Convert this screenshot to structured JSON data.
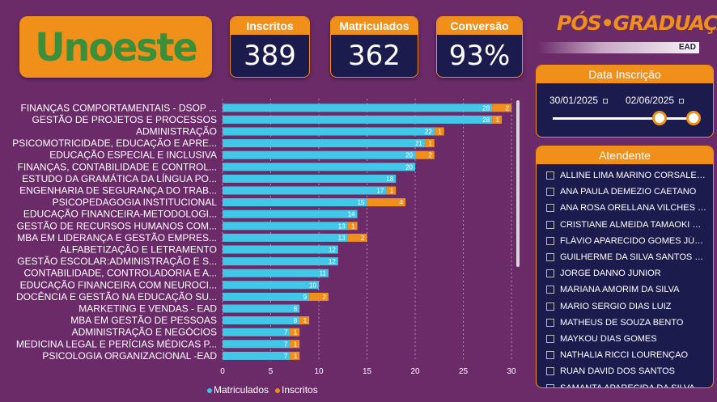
{
  "logo": {
    "text": "Unoeste"
  },
  "kpis": [
    {
      "label": "Inscritos",
      "value": "389"
    },
    {
      "label": "Matriculados",
      "value": "362"
    },
    {
      "label": "Conversão",
      "value": "93%"
    }
  ],
  "brand": {
    "title": "PÓS•GRADUAÇÃO",
    "subtitle": "EAD"
  },
  "date_filter": {
    "title": "Data Inscrição",
    "start": "30/01/2025",
    "end": "02/06/2025",
    "range_start_fraction": 0.76,
    "range_end_fraction": 1.0
  },
  "attendants": {
    "title": "Atendente",
    "items": [
      "ALLINE LIMA MARINO CORSALETTI",
      "ANA PAULA DEMEZIO CAETANO",
      "ANA ROSA ORELLANA VILCHES SO...",
      "CRISTIANE ALMEIDA TAMAOKI ROD...",
      "FLÁVIO APARECIDO GOMES JÚNIOR",
      "GUILHERME DA SILVA SANTOS JOZI...",
      "JORGE DANNO JUNIOR",
      "MARIANA AMORIM DA SILVA",
      "MARIO SERGIO DIAS LUIZ",
      "MATHEUS DE SOUZA BENTO",
      "MAYKOU DIAS GOMES",
      "NATHALIA RICCI LOURENÇAO",
      "RUAN DAVID DOS SANTOS",
      "SAMANTA APARECIDA DA SILVA"
    ]
  },
  "colors": {
    "matriculados": "#41c8e8",
    "inscritos": "#f0901a"
  },
  "chart_data": {
    "type": "bar",
    "orientation": "horizontal",
    "stacked": true,
    "categories": [
      "FINANÇAS COMPORTAMENTAIS - DSOP ...",
      "GESTÃO DE PROJETOS E PROCESSOS",
      "ADMINISTRAÇÃO",
      "PSICOMOTRICIDADE, EDUCAÇÃO E APRE...",
      "EDUCAÇÃO ESPECIAL E INCLUSIVA",
      "FINANÇAS, CONTABILIDADE E CONTROL...",
      "ESTUDO DA GRAMÁTICA DA LÍNGUA PO...",
      "ENGENHARIA DE SEGURANÇA DO TRAB...",
      "PSICOPEDAGOGIA INSTITUCIONAL",
      "EDUCAÇÃO FINANCEIRA-METODOLOGI...",
      "GESTÃO DE RECURSOS HUMANOS COM...",
      "MBA EM LIDERANÇA E GESTÃO EMPRES...",
      "ALFABETIZAÇÃO E LETRAMENTO",
      "GESTÃO ESCOLAR:ADMINISTRAÇÃO E S...",
      "CONTABILIDADE, CONTROLADORIA E A...",
      "EDUCAÇÃO FINANCEIRA COM NEUROCI...",
      "DOCÊNCIA E GESTÃO NA EDUCAÇÃO SU...",
      "MARKETING E VENDAS - EAD",
      "MBA EM GESTÃO DE PESSOAS",
      "ADMINISTRAÇÃO E NEGÓCIOS",
      "MEDICINA LEGAL E PERÍCIAS MÉDICAS P...",
      "PSICOLOGIA ORGANIZACIONAL -EAD"
    ],
    "series": [
      {
        "name": "Matriculados",
        "values": [
          28,
          28,
          22,
          21,
          20,
          20,
          18,
          17,
          15,
          14,
          13,
          13,
          12,
          12,
          11,
          10,
          9,
          8,
          8,
          7,
          7,
          7
        ]
      },
      {
        "name": "Inscritos",
        "values": [
          2,
          1,
          1,
          1,
          2,
          null,
          null,
          1,
          4,
          null,
          1,
          2,
          null,
          null,
          null,
          null,
          2,
          null,
          1,
          1,
          1,
          1
        ]
      }
    ],
    "xlim": [
      0,
      30
    ],
    "xticks": [
      0,
      5,
      10,
      15,
      20,
      25,
      30
    ],
    "grid": true,
    "legend_position": "bottom-left"
  }
}
